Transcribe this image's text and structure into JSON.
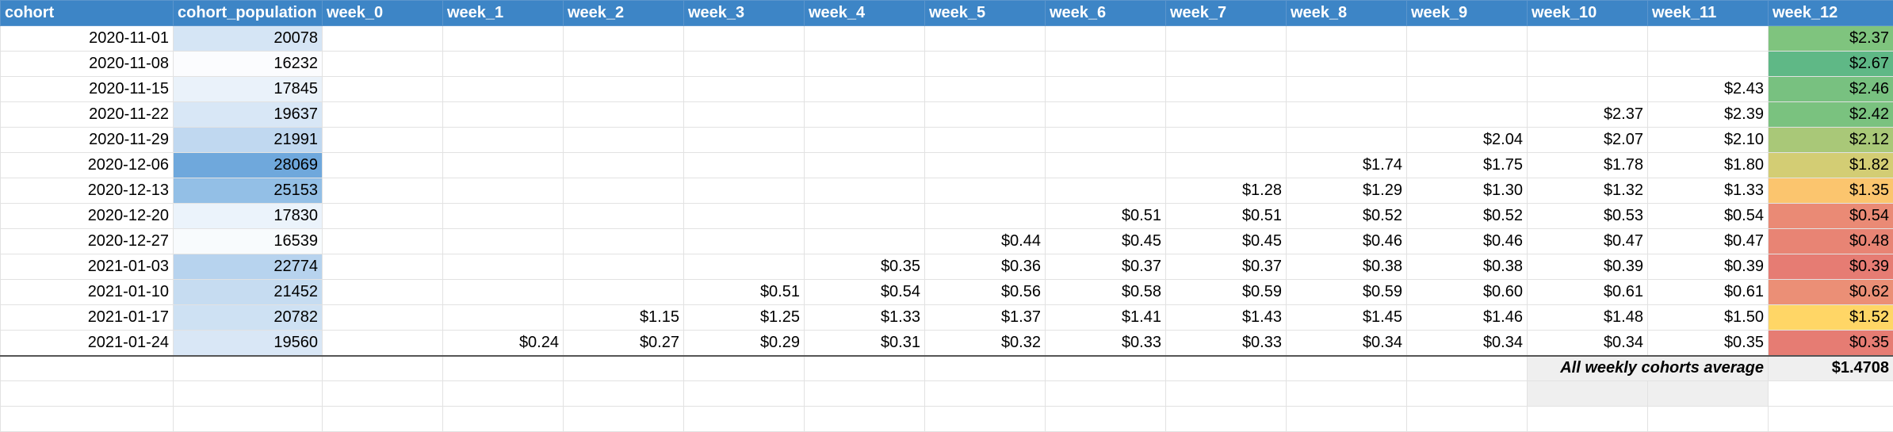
{
  "columns": [
    "cohort",
    "cohort_population",
    "week_0",
    "week_1",
    "week_2",
    "week_3",
    "week_4",
    "week_5",
    "week_6",
    "week_7",
    "week_8",
    "week_9",
    "week_10",
    "week_11",
    "week_12"
  ],
  "rows": [
    {
      "cohort": "2020-11-01",
      "population": "20078",
      "pop_color": "#d5e5f5",
      "weeks": [
        "",
        "",
        "",
        "",
        "",
        "",
        "",
        "",
        "",
        "",
        "",
        "",
        "$2.37"
      ],
      "w12_color": "#7fc47e"
    },
    {
      "cohort": "2020-11-08",
      "population": "16232",
      "pop_color": "#fbfcfe",
      "weeks": [
        "",
        "",
        "",
        "",
        "",
        "",
        "",
        "",
        "",
        "",
        "",
        "",
        "$2.67"
      ],
      "w12_color": "#5fb886"
    },
    {
      "cohort": "2020-11-15",
      "population": "17845",
      "pop_color": "#eaf2fa",
      "weeks": [
        "",
        "",
        "",
        "",
        "",
        "",
        "",
        "",
        "",
        "",
        "",
        "$2.43",
        "$2.46"
      ],
      "w12_color": "#78c180"
    },
    {
      "cohort": "2020-11-22",
      "population": "19637",
      "pop_color": "#d8e7f6",
      "weeks": [
        "",
        "",
        "",
        "",
        "",
        "",
        "",
        "",
        "",
        "",
        "$2.37",
        "$2.39",
        "$2.42"
      ],
      "w12_color": "#7ac27f"
    },
    {
      "cohort": "2020-11-29",
      "population": "21991",
      "pop_color": "#c0d8f0",
      "weeks": [
        "",
        "",
        "",
        "",
        "",
        "",
        "",
        "",
        "",
        "$2.04",
        "$2.07",
        "$2.10",
        "$2.12"
      ],
      "w12_color": "#a9c878"
    },
    {
      "cohort": "2020-12-06",
      "population": "28069",
      "pop_color": "#6fa8dc",
      "weeks": [
        "",
        "",
        "",
        "",
        "",
        "",
        "",
        "",
        "$1.74",
        "$1.75",
        "$1.78",
        "$1.80",
        "$1.82"
      ],
      "w12_color": "#d3cd74"
    },
    {
      "cohort": "2020-12-13",
      "population": "25153",
      "pop_color": "#93bfe6",
      "weeks": [
        "",
        "",
        "",
        "",
        "",
        "",
        "",
        "$1.28",
        "$1.29",
        "$1.30",
        "$1.32",
        "$1.33",
        "$1.35"
      ],
      "w12_color": "#fbc56e"
    },
    {
      "cohort": "2020-12-20",
      "population": "17830",
      "pop_color": "#ebf3fb",
      "weeks": [
        "",
        "",
        "",
        "",
        "",
        "",
        "$0.51",
        "$0.51",
        "$0.52",
        "$0.52",
        "$0.53",
        "$0.54",
        "$0.54"
      ],
      "w12_color": "#ea8a75"
    },
    {
      "cohort": "2020-12-27",
      "population": "16539",
      "pop_color": "#f8fbfd",
      "weeks": [
        "",
        "",
        "",
        "",
        "",
        "$0.44",
        "$0.45",
        "$0.45",
        "$0.46",
        "$0.46",
        "$0.47",
        "$0.47",
        "$0.48"
      ],
      "w12_color": "#e88474"
    },
    {
      "cohort": "2021-01-03",
      "population": "22774",
      "pop_color": "#b7d3ee",
      "weeks": [
        "",
        "",
        "",
        "",
        "$0.35",
        "$0.36",
        "$0.37",
        "$0.37",
        "$0.38",
        "$0.38",
        "$0.39",
        "$0.39",
        "$0.39"
      ],
      "w12_color": "#e67c73"
    },
    {
      "cohort": "2021-01-10",
      "population": "21452",
      "pop_color": "#c6dcf1",
      "weeks": [
        "",
        "",
        "",
        "$0.51",
        "$0.54",
        "$0.56",
        "$0.58",
        "$0.59",
        "$0.59",
        "$0.60",
        "$0.61",
        "$0.61",
        "$0.62"
      ],
      "w12_color": "#eb8f76"
    },
    {
      "cohort": "2021-01-17",
      "population": "20782",
      "pop_color": "#cee1f3",
      "weeks": [
        "",
        "",
        "$1.15",
        "$1.25",
        "$1.33",
        "$1.37",
        "$1.41",
        "$1.43",
        "$1.45",
        "$1.46",
        "$1.48",
        "$1.50",
        "$1.52"
      ],
      "w12_color": "#ffd666"
    },
    {
      "cohort": "2021-01-24",
      "population": "19560",
      "pop_color": "#d9e7f6",
      "weeks": [
        "",
        "$0.24",
        "$0.27",
        "$0.29",
        "$0.31",
        "$0.32",
        "$0.33",
        "$0.33",
        "$0.34",
        "$0.34",
        "$0.34",
        "$0.35",
        "$0.35"
      ],
      "w12_color": "#e67c73"
    }
  ],
  "summary": {
    "label": "All weekly cohorts average",
    "value": "$1.4708"
  },
  "colors": {
    "header_bg": "#3d85c6",
    "header_text": "#ffffff",
    "summary_bg": "#efefef"
  }
}
